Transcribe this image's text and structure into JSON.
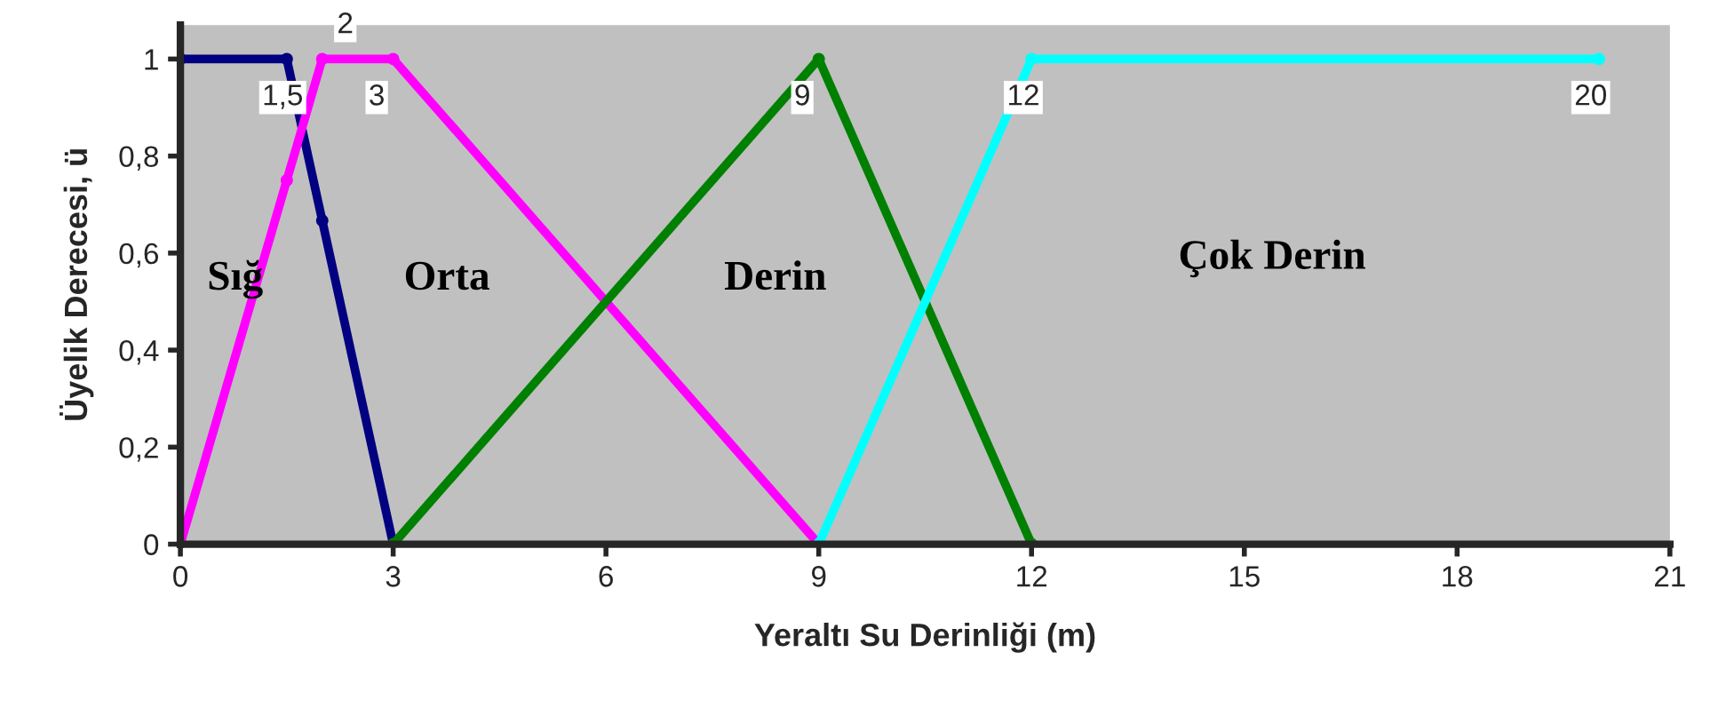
{
  "chart_data": {
    "type": "line",
    "xlabel": "Yeraltı Su Derinliği (m)",
    "ylabel": "Üyelik Derecesi, ü",
    "series": [
      {
        "color": "#000080",
        "x": [
          0,
          1.5,
          2,
          3
        ],
        "values": [
          1,
          1,
          0.667,
          0
        ]
      },
      {
        "color": "#ff00ff",
        "x": [
          0,
          1.5,
          2,
          3,
          9
        ],
        "values": [
          0,
          0.75,
          1,
          1,
          0
        ]
      },
      {
        "color": "#008000",
        "x": [
          3,
          9,
          12
        ],
        "values": [
          0,
          1,
          0
        ]
      },
      {
        "color": "#00ffff",
        "x": [
          9,
          12,
          20
        ],
        "values": [
          0,
          1,
          1
        ]
      }
    ],
    "annotations": [
      "Sığ",
      "Orta",
      "Derin",
      "Çok Derin",
      {
        "text": "1,5",
        "x": 1.5,
        "y": 1
      },
      {
        "text": "2",
        "x": 2,
        "y": 1
      },
      {
        "text": "3",
        "x": 3,
        "y": 1
      },
      {
        "text": "9",
        "x": 9,
        "y": 1
      },
      {
        "text": "12",
        "x": 12,
        "y": 1
      },
      {
        "text": "20",
        "x": 20,
        "y": 1
      }
    ],
    "xlim": [
      0,
      21
    ],
    "xticks": [
      0,
      3,
      6,
      9,
      12,
      15,
      18,
      21
    ],
    "ylim": [
      0,
      1.07
    ],
    "yticks": [
      0,
      {
        "value": 0.2,
        "label": "0,2"
      },
      {
        "value": 0.4,
        "label": "0,4"
      },
      {
        "value": 0.6,
        "label": "0,6"
      },
      {
        "value": 0.8,
        "label": "0,8"
      },
      1
    ],
    "grid": false,
    "legend": false,
    "marker": "circle",
    "line_style": "solid"
  }
}
